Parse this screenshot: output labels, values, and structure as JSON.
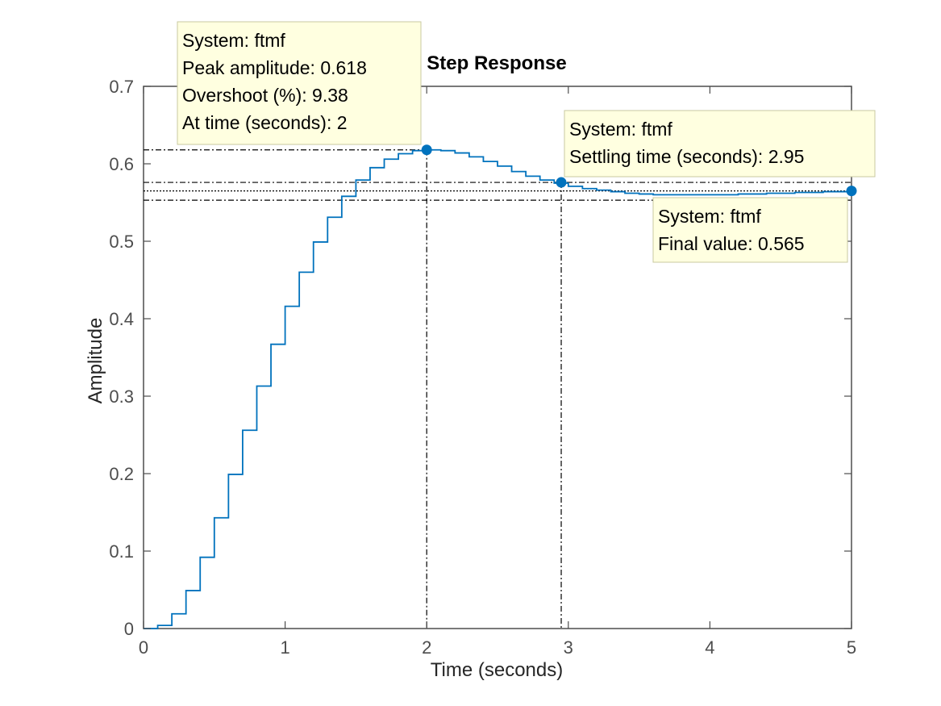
{
  "chart_data": {
    "type": "line",
    "title": "Step Response",
    "xlabel": "Time (seconds)",
    "ylabel": "Amplitude",
    "xlim": [
      0,
      5
    ],
    "ylim": [
      0,
      0.7
    ],
    "xticks": [
      0,
      1,
      2,
      3,
      4,
      5
    ],
    "xtick_labels": [
      "0",
      "1",
      "2",
      "3",
      "4",
      "5"
    ],
    "yticks": [
      0,
      0.1,
      0.2,
      0.3,
      0.4,
      0.5,
      0.6,
      0.7
    ],
    "ytick_labels": [
      "0",
      "0.1",
      "0.2",
      "0.3",
      "0.4",
      "0.5",
      "0.6",
      "0.7"
    ],
    "grid": false,
    "series": [
      {
        "name": "ftmf",
        "style": "stairs",
        "color": "#0072BD",
        "x": [
          0,
          0.1,
          0.2,
          0.3,
          0.4,
          0.5,
          0.6,
          0.7,
          0.8,
          0.9,
          1.0,
          1.1,
          1.2,
          1.3,
          1.4,
          1.5,
          1.6,
          1.7,
          1.8,
          1.9,
          2.0,
          2.1,
          2.2,
          2.3,
          2.4,
          2.5,
          2.6,
          2.7,
          2.8,
          2.9,
          3.0,
          3.1,
          3.2,
          3.3,
          3.4,
          3.5,
          3.6,
          3.7,
          3.8,
          3.9,
          4.0,
          4.1,
          4.2,
          4.3,
          4.4,
          4.5,
          4.6,
          4.7,
          4.8,
          4.9,
          5.0
        ],
        "y": [
          0,
          0.004,
          0.019,
          0.049,
          0.092,
          0.143,
          0.199,
          0.256,
          0.313,
          0.367,
          0.416,
          0.46,
          0.499,
          0.531,
          0.558,
          0.579,
          0.595,
          0.606,
          0.613,
          0.617,
          0.618,
          0.617,
          0.614,
          0.609,
          0.603,
          0.597,
          0.59,
          0.584,
          0.579,
          0.575,
          0.571,
          0.568,
          0.566,
          0.564,
          0.562,
          0.561,
          0.56,
          0.56,
          0.56,
          0.56,
          0.56,
          0.56,
          0.561,
          0.561,
          0.562,
          0.562,
          0.563,
          0.563,
          0.564,
          0.564,
          0.565
        ]
      }
    ],
    "reference_lines": {
      "peak": {
        "time": 2,
        "amplitude": 0.618
      },
      "settling": {
        "time": 2.95,
        "amplitude": 0.576
      },
      "final_value": 0.565,
      "band_low": 0.553,
      "band_high": 0.576
    },
    "annotations": [
      {
        "id": "peak",
        "x": 2,
        "y": 0.618,
        "lines": [
          "System: ftmf",
          "Peak amplitude: 0.618",
          "Overshoot (%): 9.38",
          "At time (seconds): 2"
        ]
      },
      {
        "id": "settling",
        "x": 2.95,
        "y": 0.576,
        "lines": [
          "System: ftmf",
          "Settling time (seconds): 2.95"
        ]
      },
      {
        "id": "final",
        "x": 5,
        "y": 0.565,
        "lines": [
          "System: ftmf",
          "Final value: 0.565"
        ]
      }
    ],
    "colors": {
      "series": "#0072BD",
      "axes": "#4d4d4d",
      "tooltip_bg": "#ffffe0",
      "tooltip_border": "#c8c8a0",
      "guide": "#000000"
    }
  }
}
